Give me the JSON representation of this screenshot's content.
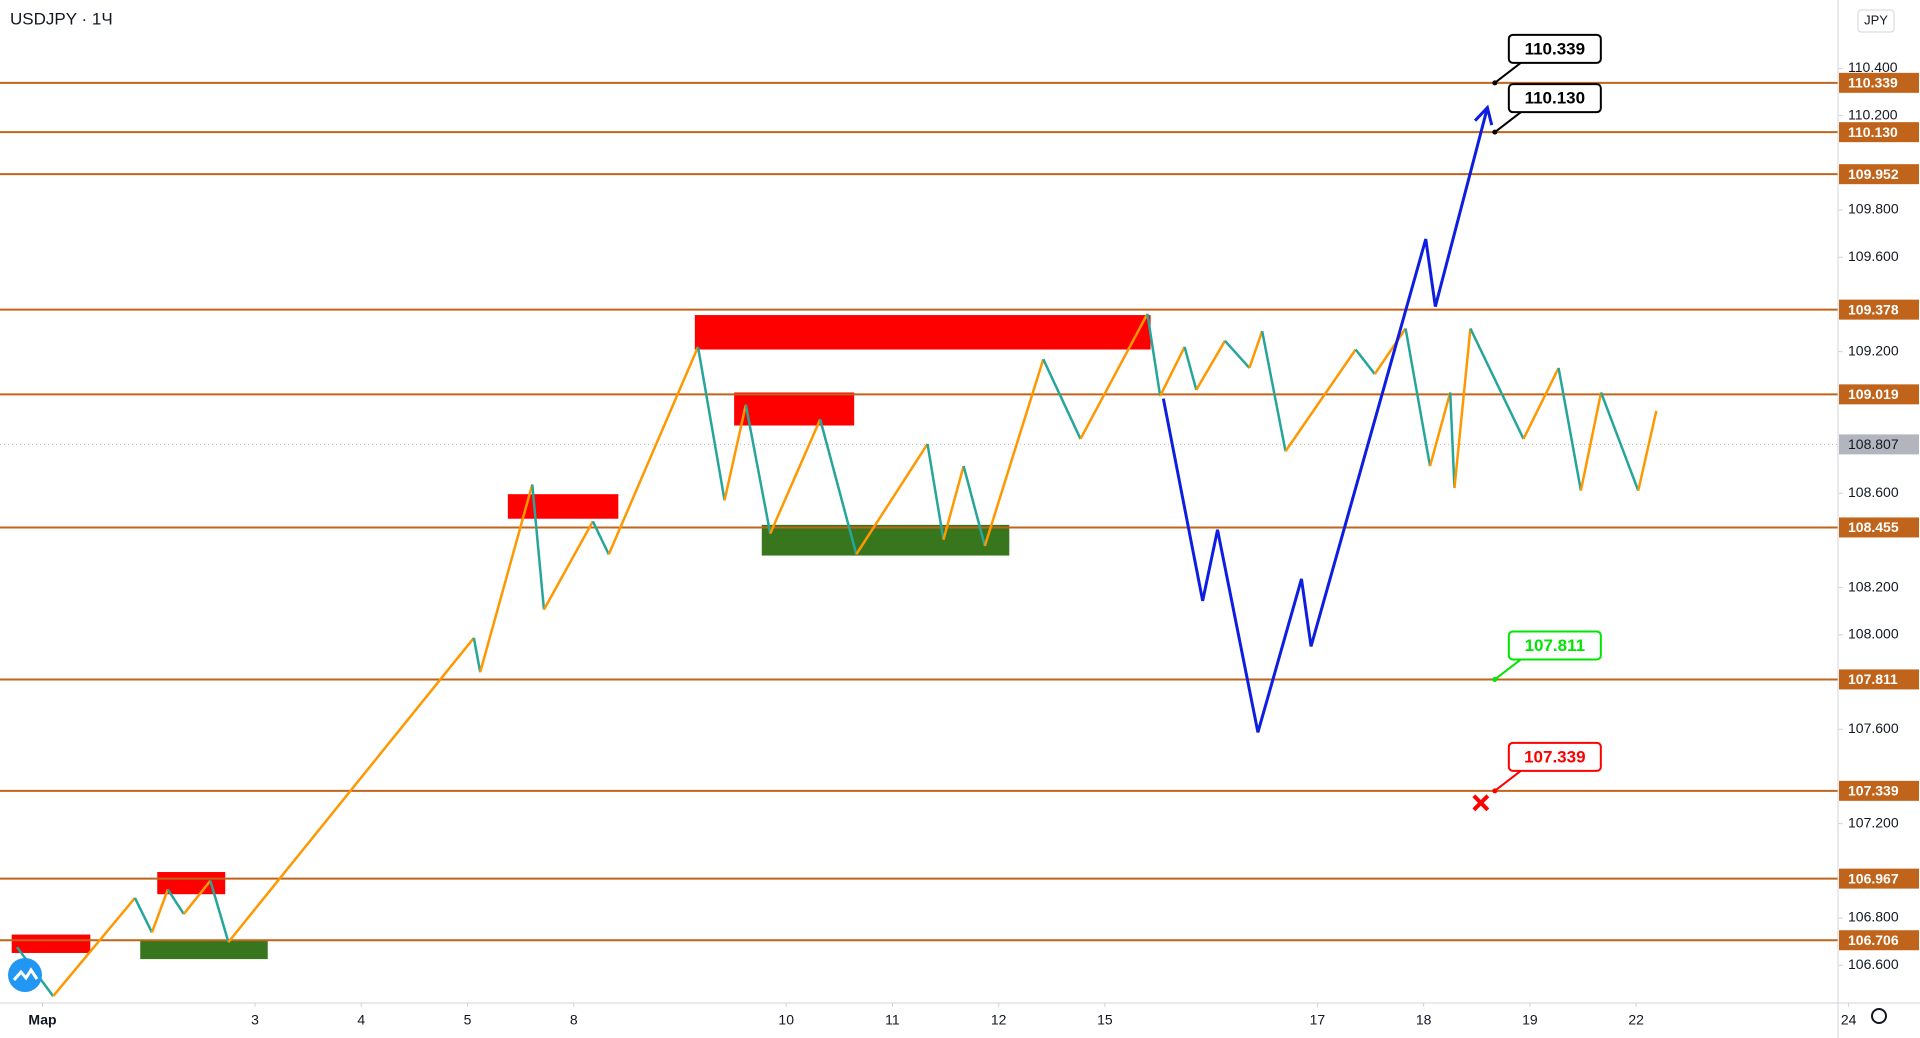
{
  "chart_data": {
    "type": "line",
    "title": "USDJPY · 1Ч",
    "currency": "JPY",
    "xlim": [
      -0.4,
      16.9
    ],
    "ylim": [
      106.44,
      110.69
    ],
    "xticks": [
      {
        "value": 0,
        "label": "Мар"
      },
      {
        "value": 2,
        "label": "3"
      },
      {
        "value": 3,
        "label": "4"
      },
      {
        "value": 4,
        "label": "5"
      },
      {
        "value": 5,
        "label": "8"
      },
      {
        "value": 7,
        "label": "10"
      },
      {
        "value": 8,
        "label": "11"
      },
      {
        "value": 9,
        "label": "12"
      },
      {
        "value": 10,
        "label": "15"
      },
      {
        "value": 12,
        "label": "17"
      },
      {
        "value": 13,
        "label": "18"
      },
      {
        "value": 14,
        "label": "19"
      },
      {
        "value": 15,
        "label": "22"
      },
      {
        "value": 17,
        "label": "24"
      }
    ],
    "yticks": [
      {
        "value": 106.6,
        "label": "106.600"
      },
      {
        "value": 106.8,
        "label": "106.800"
      },
      {
        "value": 107.2,
        "label": "107.200"
      },
      {
        "value": 107.6,
        "label": "107.600"
      },
      {
        "value": 108.0,
        "label": "108.000"
      },
      {
        "value": 108.2,
        "label": "108.200"
      },
      {
        "value": 108.6,
        "label": "108.600"
      },
      {
        "value": 109.2,
        "label": "109.200"
      },
      {
        "value": 109.6,
        "label": "109.600"
      },
      {
        "value": 109.8,
        "label": "109.800"
      },
      {
        "value": 110.2,
        "label": "110.200"
      },
      {
        "value": 110.4,
        "label": "110.400"
      }
    ],
    "levels": {
      "color": "#c0641b",
      "values": [
        110.339,
        110.13,
        109.952,
        109.378,
        109.019,
        108.455,
        107.811,
        107.339,
        106.967,
        106.706
      ],
      "value_labels": [
        "110.339",
        "110.130",
        "109.952",
        "109.378",
        "109.019",
        "108.455",
        "107.811",
        "107.339",
        "106.967",
        "106.706"
      ]
    },
    "last_price": 108.807,
    "zones": [
      {
        "x": [
          -0.29,
          0.45
        ],
        "y": [
          106.73,
          106.652
        ],
        "color": "#ff0000"
      },
      {
        "x": [
          1.08,
          1.72
        ],
        "y": [
          106.995,
          106.901
        ],
        "color": "#ff0000"
      },
      {
        "x": [
          0.92,
          2.12
        ],
        "y": [
          106.704,
          106.626
        ],
        "color": "#38761d"
      },
      {
        "x": [
          4.38,
          5.42
        ],
        "y": [
          108.596,
          108.492
        ],
        "color": "#ff0000"
      },
      {
        "x": [
          6.14,
          10.43
        ],
        "y": [
          109.355,
          109.209
        ],
        "color": "#ff0000"
      },
      {
        "x": [
          6.51,
          7.64
        ],
        "y": [
          109.027,
          108.887
        ],
        "color": "#ff0000"
      },
      {
        "x": [
          6.77,
          9.1
        ],
        "y": [
          108.466,
          108.336
        ],
        "color": "#38761d"
      }
    ],
    "zigzag": {
      "colors": [
        "#ff9800",
        "#26a69a"
      ],
      "x": [
        -0.24,
        0.1,
        0.87,
        1.03,
        1.18,
        1.33,
        1.58,
        1.75,
        4.06,
        4.12,
        4.61,
        4.72,
        5.18,
        5.33,
        6.17,
        6.42,
        6.62,
        6.85,
        7.32,
        7.66,
        8.33,
        8.48,
        8.67,
        8.87,
        9.42,
        9.77,
        10.4,
        10.52,
        10.75,
        10.86,
        11.13,
        11.36,
        11.48,
        11.7,
        12.36,
        12.54,
        12.83,
        13.06,
        13.25,
        13.29,
        13.44,
        13.94,
        14.27,
        14.48,
        14.67,
        15.02,
        15.19
      ],
      "y": [
        106.677,
        106.469,
        106.885,
        106.739,
        106.921,
        106.817,
        106.958,
        106.698,
        107.987,
        107.842,
        108.637,
        108.107,
        108.481,
        108.341,
        109.22,
        108.57,
        108.975,
        108.429,
        108.913,
        108.341,
        108.809,
        108.403,
        108.715,
        108.377,
        109.168,
        108.83,
        109.36,
        109.012,
        109.22,
        109.038,
        109.246,
        109.131,
        109.287,
        108.778,
        109.209,
        109.105,
        109.298,
        108.715,
        109.027,
        108.622,
        109.298,
        108.83,
        109.131,
        108.611,
        109.027,
        108.611,
        108.949
      ]
    },
    "projection": {
      "color": "#0d1ee0",
      "x": [
        10.55,
        10.92,
        11.06,
        11.44,
        11.85,
        11.94,
        13.02,
        13.11,
        13.6
      ],
      "y": [
        109.001,
        108.144,
        108.445,
        107.587,
        108.237,
        107.951,
        109.677,
        109.391,
        110.234
      ]
    },
    "callouts": [
      {
        "value": 110.339,
        "label": "110.339",
        "color": "#000000"
      },
      {
        "value": 110.13,
        "label": "110.130",
        "color": "#000000"
      },
      {
        "value": 107.811,
        "label": "107.811",
        "color": "#00e600"
      },
      {
        "value": 107.339,
        "label": "107.339",
        "color": "#ff0000"
      }
    ]
  }
}
